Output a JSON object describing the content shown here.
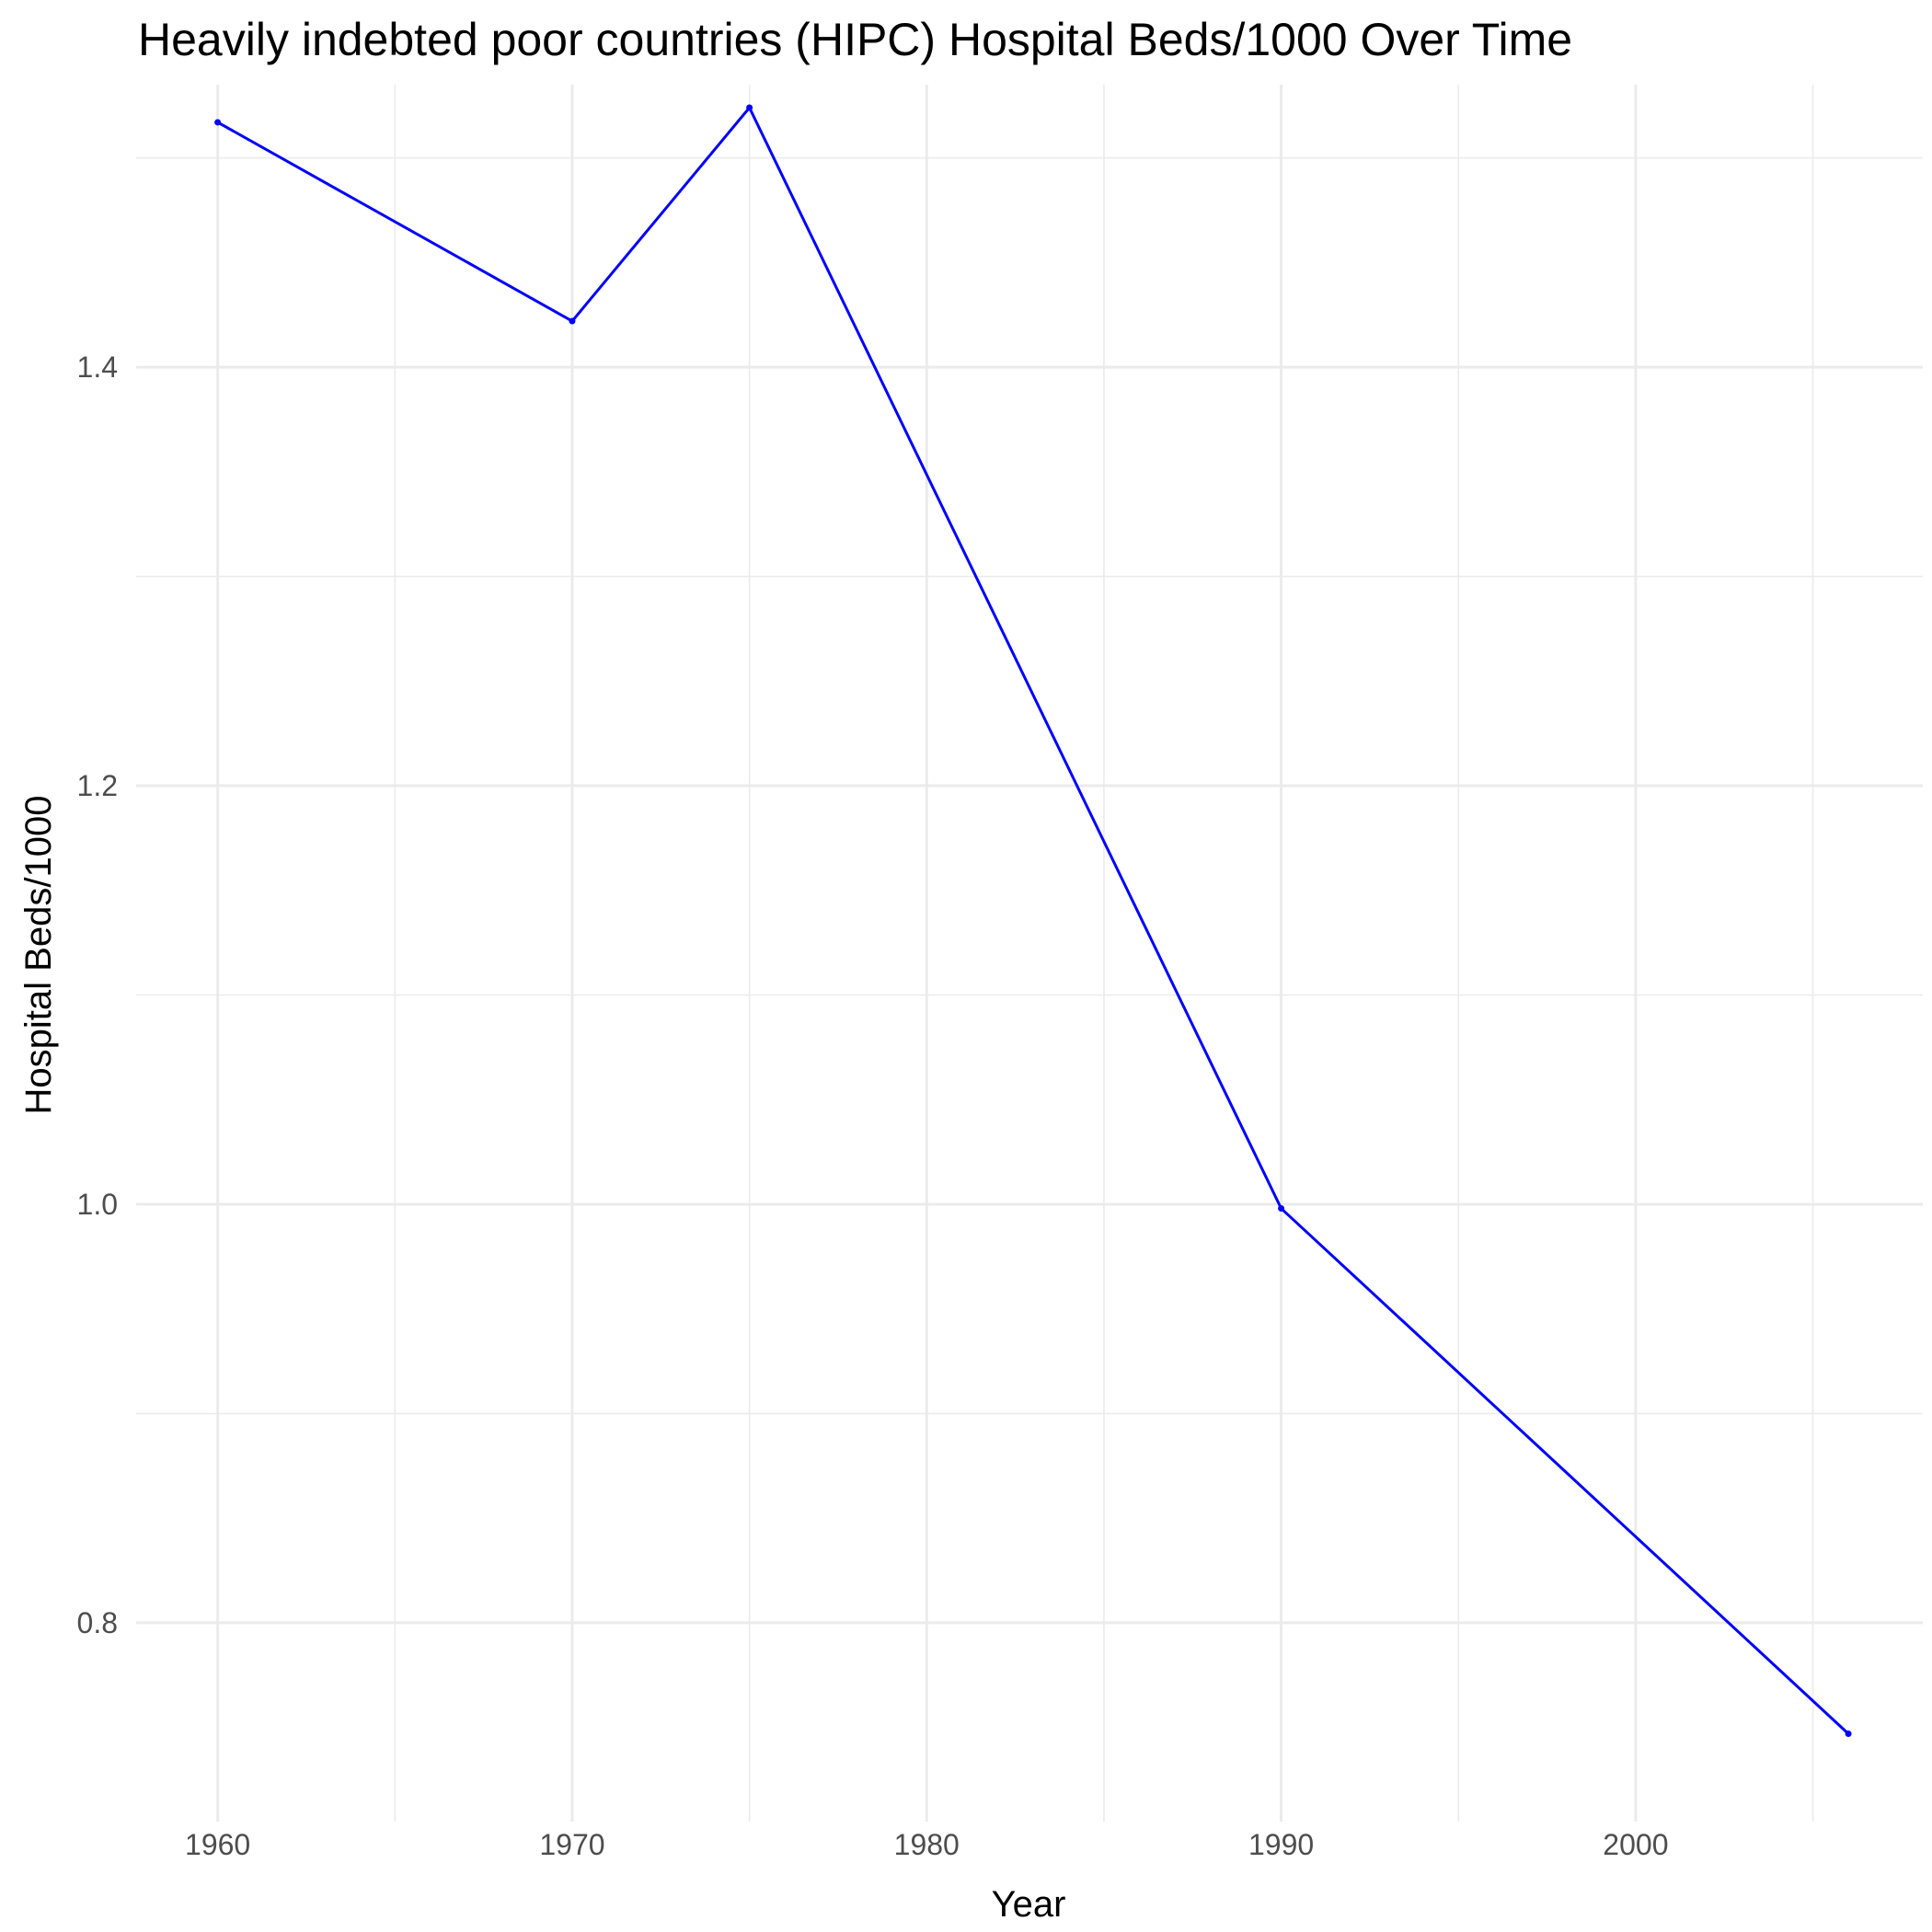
{
  "chart_data": {
    "type": "line",
    "title": "Heavily indebted poor countries (HIPC) Hospital Beds/1000 Over Time",
    "xlabel": "Year",
    "ylabel": "Hospital Beds/1000",
    "xlim": [
      1957.7,
      2008.1
    ],
    "ylim": [
      0.705,
      1.535
    ],
    "x_ticks": [
      1960,
      1970,
      1980,
      1990,
      2000
    ],
    "y_ticks": [
      0.8,
      1.0,
      1.2,
      1.4
    ],
    "x_minor_ticks": [
      1965,
      1975,
      1985,
      1995,
      2005
    ],
    "y_minor_ticks": [
      0.9,
      1.1,
      1.3,
      1.5
    ],
    "x_tick_labels": [
      "1960",
      "1970",
      "1980",
      "1990",
      "2000"
    ],
    "y_tick_labels": [
      "0.8",
      "1.0",
      "1.2",
      "1.4"
    ],
    "grid": true,
    "series": [
      {
        "color": "#0000ff",
        "x": [
          1960,
          1970,
          1975,
          1990,
          2006
        ],
        "y": [
          1.517,
          1.422,
          1.524,
          0.998,
          0.747
        ]
      }
    ]
  }
}
